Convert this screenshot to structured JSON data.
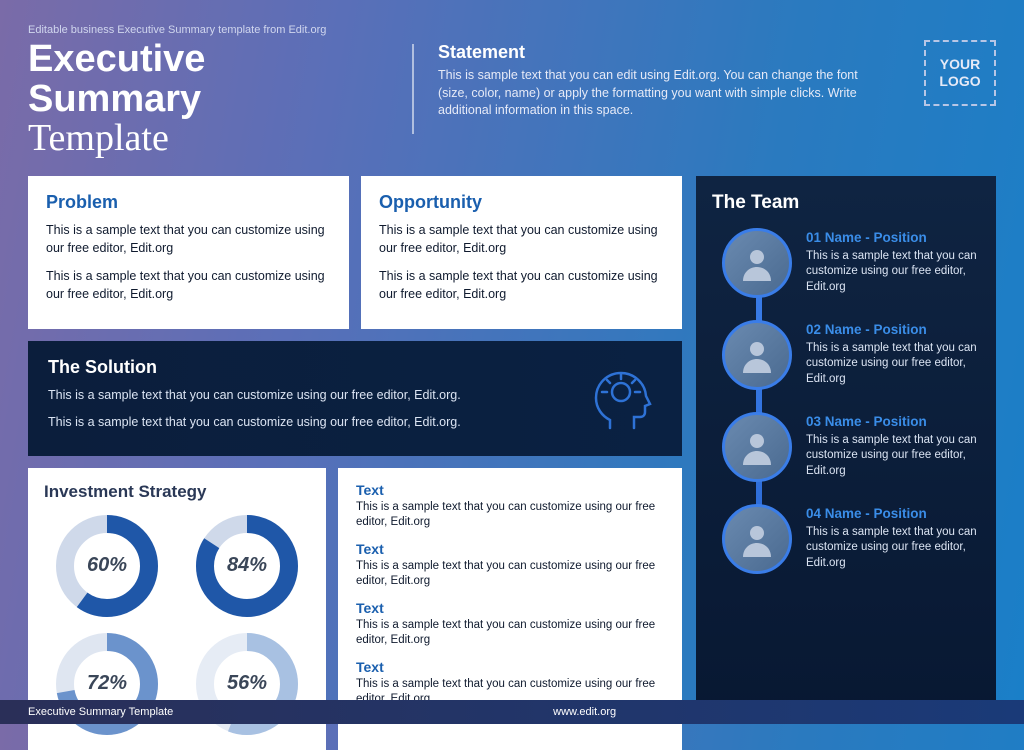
{
  "caption": "Editable business Executive Summary template from Edit.org",
  "title_line1": "Executive Summary",
  "title_line2": "Template",
  "statement": {
    "heading": "Statement",
    "body": "This is sample text that you can edit using Edit.org. You can change the font (size, color, name) or apply the formatting you want with simple clicks. Write additional information in this space."
  },
  "logo_text": "YOUR LOGO",
  "problem": {
    "heading": "Problem",
    "p1": "This is a sample text that you can customize using our free editor, Edit.org",
    "p2": "This is a sample text that you can customize using our free editor, Edit.org"
  },
  "opportunity": {
    "heading": "Opportunity",
    "p1": "This is a sample text that you can customize using our free editor, Edit.org",
    "p2": "This is a sample text that you can customize using our free editor, Edit.org"
  },
  "solution": {
    "heading": "The Solution",
    "p1": "This is a sample text that you can customize using our free editor, Edit.org.",
    "p2": "This is a sample text that you can customize using our free editor, Edit.org."
  },
  "investment": {
    "heading": "Investment Strategy",
    "donuts": [
      {
        "value": 60,
        "color": "#1f57a8",
        "track": "#cfd9ea"
      },
      {
        "value": 84,
        "color": "#1f57a8",
        "track": "#cfd9ea"
      },
      {
        "value": 72,
        "color": "#6b93cc",
        "track": "#dfe6f1"
      },
      {
        "value": 56,
        "color": "#a8c1e2",
        "track": "#e6ecf5"
      }
    ],
    "donut_thickness": 18,
    "donut_radius": 42
  },
  "texts": {
    "items": [
      {
        "h": "Text",
        "p": "This is a sample text that you can customize using our free editor, Edit.org"
      },
      {
        "h": "Text",
        "p": "This is a sample text that you can customize using our free editor, Edit.org"
      },
      {
        "h": "Text",
        "p": "This is a sample text that you can customize using our free editor, Edit.org"
      },
      {
        "h": "Text",
        "p": "This is a sample text that you can customize using our free editor, Edit.org"
      }
    ]
  },
  "team": {
    "heading": "The Team",
    "members": [
      {
        "name": "01 Name - Position",
        "text": "This is a sample text that you can customize using our free editor, Edit.org"
      },
      {
        "name": "02 Name - Position",
        "text": "This is a sample text that you can customize using our free editor, Edit.org"
      },
      {
        "name": "03 Name - Position",
        "text": "This is a sample text that you can customize using our free editor, Edit.org"
      },
      {
        "name": "04 Name - Position",
        "text": "This is a sample text that you can customize using our free editor, Edit.org"
      }
    ]
  },
  "footer": {
    "left": "Executive Summary Template",
    "center": "www.edit.org"
  },
  "colors": {
    "accent_blue": "#1a5fae",
    "dark_panel": "#0b1e3c",
    "team_accent": "#3a8de8"
  }
}
